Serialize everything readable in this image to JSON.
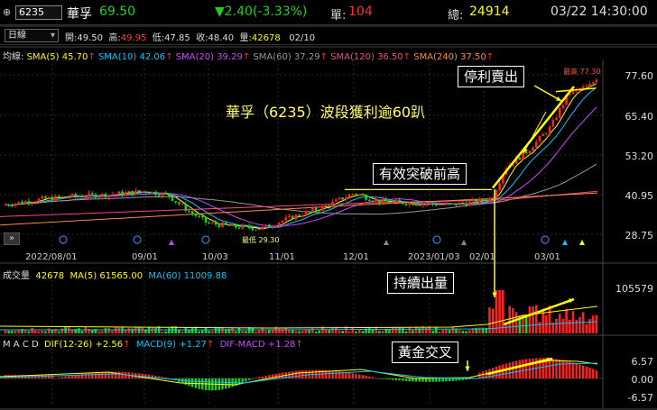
{
  "header": {
    "stock_code": "6235",
    "stock_name": "華孚",
    "price": "69.50",
    "change": "▼2.40(-3.33%)",
    "volume_label": "單:",
    "volume_value": "104",
    "total_label": "總:",
    "total_value": "24914",
    "datetime": "03/22 14:30:00"
  },
  "info_bar": {
    "period": "日線",
    "open_label": "開:",
    "open": "49.50",
    "high_label": "高:",
    "high": "49.95",
    "low_label": "低:",
    "low": "47.85",
    "close_label": "收:",
    "close": "48.40",
    "volume_label": "量:",
    "volume": "42678",
    "date": "02/10"
  },
  "ma_legend": {
    "title": "均線:",
    "items": [
      {
        "label": "SMA(5) 45.70",
        "color": "#ffff00"
      },
      {
        "label": "SMA(10) 42.06",
        "color": "#00c8ff"
      },
      {
        "label": "SMA(20) 39.29",
        "color": "#cc44ff"
      },
      {
        "label": "SMA(60) 37.29",
        "color": "#999999"
      },
      {
        "label": "SMA(120) 36.50",
        "color": "#ff4488"
      },
      {
        "label": "SMA(240) 37.50",
        "color": "#ff8844"
      }
    ]
  },
  "price_axis": [
    "77.60",
    "65.40",
    "53.20",
    "40.95",
    "28.75"
  ],
  "price_range": [
    24,
    80
  ],
  "date_axis": [
    "2022/08/01",
    "09/01",
    "10/03",
    "11/01",
    "12/01",
    "2023/01/03",
    "02/01",
    "03/01"
  ],
  "annotations": {
    "headline": "華孚（6235）波段獲利逾60趴",
    "sell": "停利賣出",
    "breakout": "有效突破前高",
    "volume": "持續出量",
    "golden_cross": "黃金交叉",
    "high_marker": "最高 77.30",
    "low_marker": "最低 29.30"
  },
  "volume_panel": {
    "title": "成交量",
    "current": "42678",
    "ma5": "MA(5) 61565.00",
    "ma60": "MA(60) 11009.88",
    "axis_max": "105579"
  },
  "macd_panel": {
    "title": "M A C D",
    "dif": "DIF(12-26) +2.56",
    "macd": "MACD(9) +1.27",
    "osc": "DIF-MACD +1.28",
    "axis": [
      "6.57",
      "0.00",
      "-6.57"
    ]
  },
  "colors": {
    "up": "#ff2020",
    "down": "#20d020",
    "accent": "#ffff00"
  },
  "chart_data": {
    "type": "line",
    "series_close_keypoints": [
      {
        "date": "2022/08/01",
        "value": 37.5
      },
      {
        "date": "2022/09/01",
        "value": 40.5
      },
      {
        "date": "2022/10/03",
        "value": 31.5
      },
      {
        "date": "2022/11/01",
        "value": 30.5
      },
      {
        "date": "2022/12/01",
        "value": 40.0
      },
      {
        "date": "2023/01/03",
        "value": 38.0
      },
      {
        "date": "2023/02/01",
        "value": 39.0
      },
      {
        "date": "2023/02/10",
        "value": 48.4
      },
      {
        "date": "2023/03/01",
        "value": 58.0
      },
      {
        "date": "2023/03/22",
        "value": 69.5
      }
    ]
  }
}
